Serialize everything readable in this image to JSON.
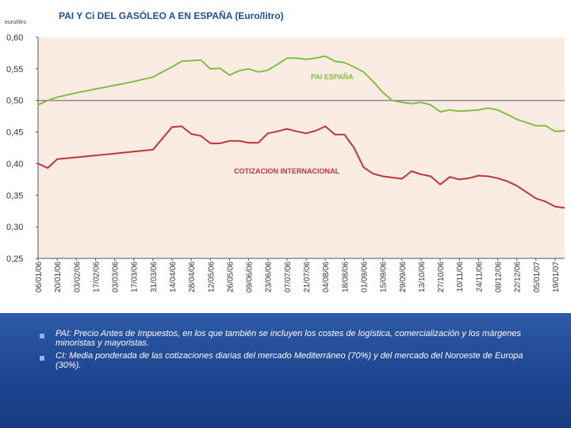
{
  "unit_label": "euro/litro",
  "chart_data": {
    "type": "line",
    "title": "PAI Y Ci DEL GASÓLEO A EN ESPAÑA (Euro/litro)",
    "xlabel": "",
    "ylabel": "",
    "ylim": [
      0.25,
      0.6
    ],
    "yticks": [
      "0,25",
      "0,30",
      "0,35",
      "0,40",
      "0,45",
      "0,50",
      "0,55",
      "0,60"
    ],
    "categories": [
      "06/01/06",
      "20/01/06",
      "03/02/06",
      "17/02/06",
      "03/03/06",
      "17/03/06",
      "31/03/06",
      "14/04/06",
      "28/04/06",
      "12/05/06",
      "26/05/06",
      "09/06/06",
      "23/06/06",
      "07/07/06",
      "21/07/06",
      "04/08/06",
      "18/08/06",
      "01/09/06",
      "15/09/06",
      "29/09/06",
      "13/10/06",
      "27/10/06",
      "10/11/06",
      "24/11/06",
      "08/12/06",
      "22/12/06",
      "05/01/07",
      "19/01/07"
    ],
    "grid": false,
    "reference_line": 0.5,
    "series": [
      {
        "name": "PAI ESPAÑA",
        "color": "#7fbf3f",
        "x": [
          0,
          0.5,
          1,
          2,
          3,
          4,
          5,
          6,
          6.5,
          7,
          7.5,
          8,
          8.5,
          9,
          9.5,
          10,
          10.5,
          11,
          11.5,
          12,
          12.5,
          13,
          13.5,
          14,
          14.5,
          15,
          15.5,
          16,
          16.5,
          17,
          17.5,
          18,
          18.5,
          19,
          19.5,
          20,
          20.5,
          21,
          21.5,
          22,
          22.5,
          23,
          23.5,
          24,
          24.5,
          25,
          25.5,
          26,
          26.5,
          27,
          27.5
        ],
        "values": [
          0.493,
          0.5,
          0.505,
          0.512,
          0.518,
          0.524,
          0.53,
          0.537,
          0.545,
          0.553,
          0.562,
          0.563,
          0.564,
          0.55,
          0.551,
          0.54,
          0.547,
          0.55,
          0.545,
          0.548,
          0.557,
          0.567,
          0.567,
          0.565,
          0.567,
          0.57,
          0.562,
          0.56,
          0.553,
          0.545,
          0.53,
          0.513,
          0.5,
          0.497,
          0.495,
          0.497,
          0.493,
          0.482,
          0.485,
          0.483,
          0.484,
          0.485,
          0.488,
          0.485,
          0.478,
          0.47,
          0.465,
          0.46,
          0.46,
          0.451,
          0.452
        ]
      },
      {
        "name": "COTIZACION INTERNACIONAL",
        "color": "#c0343a",
        "x": [
          0,
          0.5,
          1,
          2,
          3,
          4,
          5,
          6,
          6.5,
          7,
          7.5,
          8,
          8.5,
          9,
          9.5,
          10,
          10.5,
          11,
          11.5,
          12,
          12.5,
          13,
          13.5,
          14,
          14.5,
          15,
          15.5,
          16,
          16.5,
          17,
          17.5,
          18,
          18.5,
          19,
          19.5,
          20,
          20.5,
          21,
          21.5,
          22,
          22.5,
          23,
          23.5,
          24,
          24.5,
          25,
          25.5,
          26,
          26.5,
          27,
          27.5
        ],
        "values": [
          0.4,
          0.393,
          0.407,
          0.41,
          0.413,
          0.416,
          0.419,
          0.422,
          0.44,
          0.458,
          0.459,
          0.447,
          0.444,
          0.432,
          0.432,
          0.436,
          0.436,
          0.433,
          0.433,
          0.448,
          0.451,
          0.455,
          0.451,
          0.448,
          0.452,
          0.459,
          0.446,
          0.446,
          0.425,
          0.394,
          0.384,
          0.38,
          0.378,
          0.376,
          0.388,
          0.383,
          0.38,
          0.367,
          0.379,
          0.375,
          0.377,
          0.381,
          0.38,
          0.377,
          0.372,
          0.365,
          0.355,
          0.345,
          0.34,
          0.332,
          0.33
        ]
      }
    ]
  },
  "bullets": [
    {
      "text": "PAI: Precio Antes de Impuestos, en los que también se incluyen los costes de logística, comercialización y los márgenes minoristas y mayoristas."
    },
    {
      "text": "CI: Media ponderada de las cotizaciones diarias del mercado Mediterráneo (70%) y del mercado del Noroeste de Europa (30%)."
    }
  ]
}
